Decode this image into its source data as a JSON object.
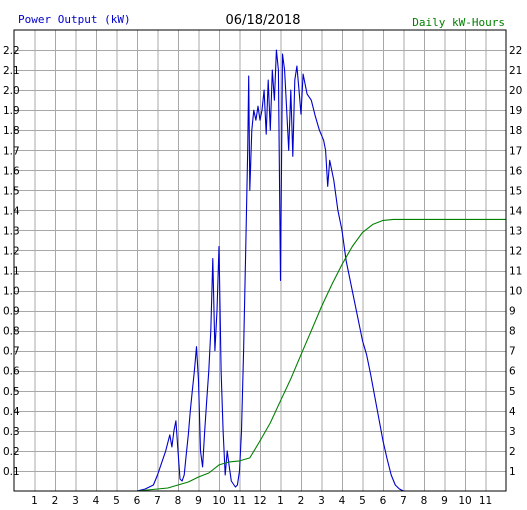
{
  "header": {
    "date": "06/18/2018",
    "left_label": "Power Output (kW)",
    "right_label": "Daily kW-Hours"
  },
  "colors": {
    "power": "#0000cc",
    "energy": "#008000",
    "grid": "#a8a8a8",
    "frame": "#000000"
  },
  "chart_data": {
    "type": "line",
    "date": "06/18/2018",
    "x_axis": {
      "unit": "hour of day",
      "range": [
        0,
        24
      ],
      "tick_labels": [
        "1",
        "2",
        "3",
        "4",
        "5",
        "6",
        "7",
        "8",
        "9",
        "10",
        "11",
        "12",
        "1",
        "2",
        "3",
        "4",
        "5",
        "6",
        "7",
        "8",
        "9",
        "10",
        "11"
      ]
    },
    "y_left": {
      "label": "Power Output (kW)",
      "range": [
        0,
        2.3
      ],
      "ticks": [
        "0.1",
        "0.2",
        "0.3",
        "0.4",
        "0.5",
        "0.6",
        "0.7",
        "0.8",
        "0.9",
        "1.0",
        "1.1",
        "1.2",
        "1.3",
        "1.4",
        "1.5",
        "1.6",
        "1.7",
        "1.8",
        "1.9",
        "2.0",
        "2.1",
        "2.2"
      ]
    },
    "y_right": {
      "label": "Daily kW-Hours",
      "range": [
        0,
        23
      ],
      "ticks": [
        "1",
        "2",
        "3",
        "4",
        "5",
        "6",
        "7",
        "8",
        "9",
        "10",
        "11",
        "12",
        "13",
        "14",
        "15",
        "16",
        "17",
        "18",
        "19",
        "20",
        "21",
        "22"
      ]
    },
    "grid": true,
    "series": [
      {
        "name": "Power Output (kW)",
        "axis": "left",
        "points": [
          [
            6.0,
            0.0
          ],
          [
            6.4,
            0.01
          ],
          [
            6.8,
            0.03
          ],
          [
            7.0,
            0.08
          ],
          [
            7.2,
            0.14
          ],
          [
            7.4,
            0.2
          ],
          [
            7.6,
            0.28
          ],
          [
            7.7,
            0.22
          ],
          [
            7.8,
            0.3
          ],
          [
            7.9,
            0.35
          ],
          [
            8.0,
            0.2
          ],
          [
            8.1,
            0.06
          ],
          [
            8.2,
            0.05
          ],
          [
            8.3,
            0.08
          ],
          [
            8.4,
            0.18
          ],
          [
            8.5,
            0.28
          ],
          [
            8.6,
            0.4
          ],
          [
            8.7,
            0.5
          ],
          [
            8.8,
            0.6
          ],
          [
            8.9,
            0.72
          ],
          [
            9.0,
            0.55
          ],
          [
            9.1,
            0.2
          ],
          [
            9.2,
            0.12
          ],
          [
            9.3,
            0.3
          ],
          [
            9.4,
            0.45
          ],
          [
            9.5,
            0.6
          ],
          [
            9.6,
            0.8
          ],
          [
            9.7,
            1.16
          ],
          [
            9.8,
            0.7
          ],
          [
            9.9,
            0.9
          ],
          [
            10.0,
            1.22
          ],
          [
            10.1,
            0.6
          ],
          [
            10.2,
            0.3
          ],
          [
            10.3,
            0.08
          ],
          [
            10.4,
            0.2
          ],
          [
            10.5,
            0.12
          ],
          [
            10.6,
            0.05
          ],
          [
            10.8,
            0.02
          ],
          [
            10.9,
            0.03
          ],
          [
            11.0,
            0.1
          ],
          [
            11.1,
            0.3
          ],
          [
            11.2,
            0.7
          ],
          [
            11.3,
            1.2
          ],
          [
            11.4,
            1.7
          ],
          [
            11.45,
            2.07
          ],
          [
            11.5,
            1.5
          ],
          [
            11.6,
            1.8
          ],
          [
            11.7,
            1.9
          ],
          [
            11.8,
            1.85
          ],
          [
            11.9,
            1.92
          ],
          [
            12.0,
            1.85
          ],
          [
            12.1,
            1.9
          ],
          [
            12.2,
            2.0
          ],
          [
            12.3,
            1.78
          ],
          [
            12.4,
            2.05
          ],
          [
            12.5,
            1.8
          ],
          [
            12.6,
            2.1
          ],
          [
            12.7,
            1.95
          ],
          [
            12.8,
            2.2
          ],
          [
            12.9,
            2.1
          ],
          [
            13.0,
            1.05
          ],
          [
            13.1,
            2.18
          ],
          [
            13.2,
            2.1
          ],
          [
            13.3,
            1.9
          ],
          [
            13.4,
            1.7
          ],
          [
            13.5,
            2.0
          ],
          [
            13.6,
            1.67
          ],
          [
            13.7,
            2.05
          ],
          [
            13.8,
            2.12
          ],
          [
            13.9,
            2.0
          ],
          [
            14.0,
            1.88
          ],
          [
            14.1,
            2.08
          ],
          [
            14.3,
            1.98
          ],
          [
            14.5,
            1.95
          ],
          [
            14.7,
            1.87
          ],
          [
            14.9,
            1.8
          ],
          [
            15.1,
            1.75
          ],
          [
            15.2,
            1.7
          ],
          [
            15.3,
            1.52
          ],
          [
            15.4,
            1.65
          ],
          [
            15.6,
            1.55
          ],
          [
            15.8,
            1.4
          ],
          [
            16.0,
            1.3
          ],
          [
            16.2,
            1.15
          ],
          [
            16.4,
            1.05
          ],
          [
            16.6,
            0.95
          ],
          [
            16.8,
            0.85
          ],
          [
            17.0,
            0.75
          ],
          [
            17.2,
            0.68
          ],
          [
            17.4,
            0.58
          ],
          [
            17.6,
            0.47
          ],
          [
            17.8,
            0.36
          ],
          [
            18.0,
            0.25
          ],
          [
            18.2,
            0.16
          ],
          [
            18.4,
            0.08
          ],
          [
            18.6,
            0.03
          ],
          [
            18.8,
            0.01
          ],
          [
            19.0,
            0.0
          ]
        ]
      },
      {
        "name": "Daily kW-Hours",
        "axis": "right",
        "points": [
          [
            6.0,
            0.0
          ],
          [
            7.0,
            0.1
          ],
          [
            7.5,
            0.15
          ],
          [
            8.0,
            0.3
          ],
          [
            8.5,
            0.45
          ],
          [
            9.0,
            0.7
          ],
          [
            9.5,
            0.9
          ],
          [
            10.0,
            1.3
          ],
          [
            10.5,
            1.45
          ],
          [
            11.0,
            1.5
          ],
          [
            11.5,
            1.65
          ],
          [
            12.0,
            2.5
          ],
          [
            12.5,
            3.4
          ],
          [
            13.0,
            4.5
          ],
          [
            13.5,
            5.6
          ],
          [
            14.0,
            6.8
          ],
          [
            14.5,
            8.0
          ],
          [
            15.0,
            9.2
          ],
          [
            15.5,
            10.3
          ],
          [
            16.0,
            11.3
          ],
          [
            16.5,
            12.2
          ],
          [
            17.0,
            12.9
          ],
          [
            17.5,
            13.3
          ],
          [
            18.0,
            13.5
          ],
          [
            18.5,
            13.55
          ],
          [
            19.0,
            13.55
          ],
          [
            24.0,
            13.55
          ]
        ]
      }
    ]
  }
}
